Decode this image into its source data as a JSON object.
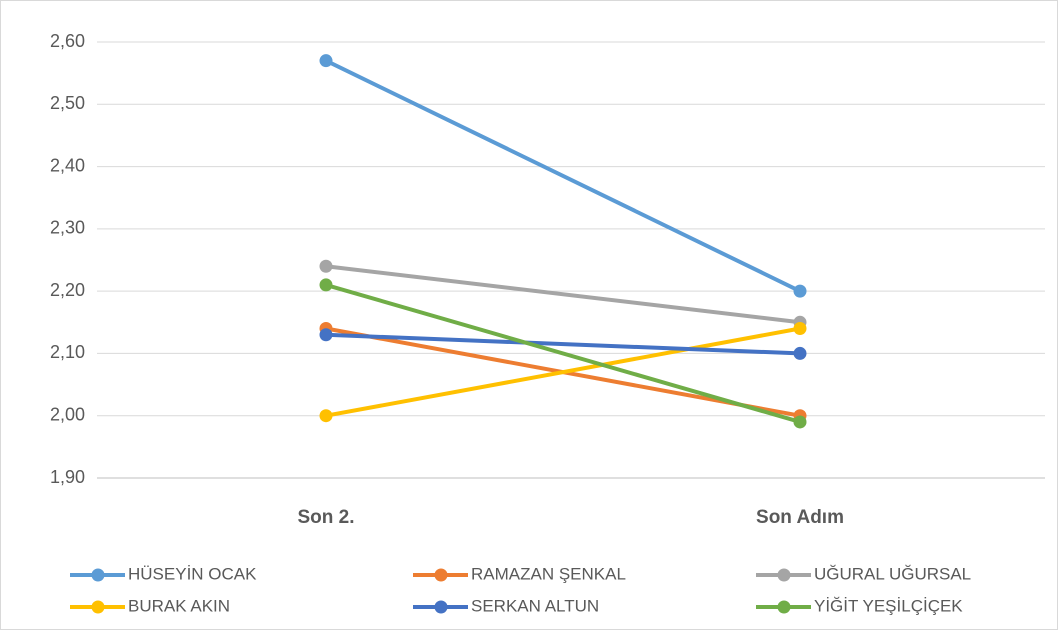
{
  "chart_data": {
    "type": "line",
    "categories": [
      "Son 2.",
      "Son Adım"
    ],
    "series": [
      {
        "name": "HÜSEYİN OCAK",
        "color": "#5b9bd5",
        "values": [
          2.57,
          2.2
        ]
      },
      {
        "name": "RAMAZAN ŞENKAL",
        "color": "#ed7d31",
        "values": [
          2.14,
          2.0
        ]
      },
      {
        "name": "UĞURAL UĞURSAL",
        "color": "#a5a5a5",
        "values": [
          2.24,
          2.15
        ]
      },
      {
        "name": "BURAK AKIN",
        "color": "#ffc000",
        "values": [
          2.0,
          2.14
        ]
      },
      {
        "name": "SERKAN ALTUN",
        "color": "#4472c4",
        "values": [
          2.13,
          2.1
        ]
      },
      {
        "name": "YİĞİT YEŞİLÇİÇEK",
        "color": "#70ad47",
        "values": [
          2.21,
          1.99
        ]
      }
    ],
    "ylim": [
      1.9,
      2.6
    ],
    "yticks": [
      {
        "value": 1.9,
        "label": "1,90"
      },
      {
        "value": 2.0,
        "label": "2,00"
      },
      {
        "value": 2.1,
        "label": "2,10"
      },
      {
        "value": 2.2,
        "label": "2,20"
      },
      {
        "value": 2.3,
        "label": "2,30"
      },
      {
        "value": 2.4,
        "label": "2,40"
      },
      {
        "value": 2.5,
        "label": "2,50"
      },
      {
        "value": 2.6,
        "label": "2,60"
      }
    ],
    "grid": true,
    "legend": "bottom"
  }
}
